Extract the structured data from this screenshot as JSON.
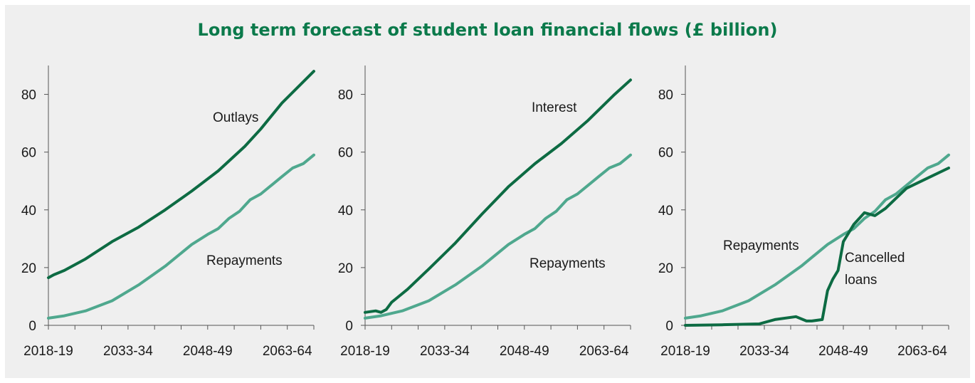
{
  "title": "Long term forecast of student loan financial flows (£ billion)",
  "colors": {
    "dark": "#0d6b43",
    "light": "#4fa88e",
    "axis": "#555555",
    "background": "#efefef",
    "title": "#0b7a4b"
  },
  "chart_data": [
    {
      "type": "line",
      "x_ticks": [
        "2018-19",
        "2033-34",
        "2048-49",
        "2063-64"
      ],
      "x_range": [
        2018,
        2068
      ],
      "ylim": [
        0,
        90
      ],
      "y_ticks": [
        0,
        20,
        40,
        60,
        80
      ],
      "series": [
        {
          "name": "Outlays",
          "color": "dark",
          "x": [
            2018,
            2019,
            2021,
            2025,
            2030,
            2035,
            2040,
            2045,
            2050,
            2055,
            2058,
            2062,
            2068
          ],
          "y": [
            16.5,
            17.5,
            19,
            23,
            29,
            34,
            40,
            46.5,
            53.5,
            62,
            68,
            77,
            88
          ]
        },
        {
          "name": "Repayments",
          "color": "light",
          "x": [
            2018,
            2021,
            2025,
            2030,
            2035,
            2040,
            2045,
            2048,
            2050,
            2052,
            2054,
            2056,
            2058,
            2060,
            2062,
            2064,
            2066,
            2068
          ],
          "y": [
            2.5,
            3.3,
            5,
            8.5,
            14,
            20.5,
            28,
            31.5,
            33.5,
            37,
            39.5,
            43.5,
            45.5,
            48.5,
            51.5,
            54.5,
            56,
            59
          ]
        }
      ],
      "annotations": [
        "Outlays",
        "Repayments"
      ]
    },
    {
      "type": "line",
      "x_ticks": [
        "2018-19",
        "2033-34",
        "2048-49",
        "2063-64"
      ],
      "x_range": [
        2018,
        2068
      ],
      "ylim": [
        0,
        90
      ],
      "y_ticks": [
        0,
        20,
        40,
        60,
        80
      ],
      "series": [
        {
          "name": "Interest",
          "color": "dark",
          "x": [
            2018,
            2020,
            2021,
            2022,
            2023,
            2024,
            2026,
            2030,
            2035,
            2040,
            2045,
            2050,
            2055,
            2060,
            2065,
            2068
          ],
          "y": [
            4.5,
            5,
            4.5,
            5.5,
            8,
            9.5,
            12.5,
            19.5,
            28.5,
            38.5,
            48,
            56,
            63,
            71,
            80,
            85
          ]
        },
        {
          "name": "Repayments",
          "color": "light",
          "x": [
            2018,
            2021,
            2025,
            2030,
            2035,
            2040,
            2045,
            2048,
            2050,
            2052,
            2054,
            2056,
            2058,
            2060,
            2062,
            2064,
            2066,
            2068
          ],
          "y": [
            2.5,
            3.3,
            5,
            8.5,
            14,
            20.5,
            28,
            31.5,
            33.5,
            37,
            39.5,
            43.5,
            45.5,
            48.5,
            51.5,
            54.5,
            56,
            59
          ]
        }
      ],
      "annotations": [
        "Interest",
        "Repayments"
      ]
    },
    {
      "type": "line",
      "x_ticks": [
        "2018-19",
        "2033-34",
        "2048-49",
        "2063-64"
      ],
      "x_range": [
        2018,
        2068
      ],
      "ylim": [
        0,
        90
      ],
      "y_ticks": [
        0,
        20,
        40,
        60,
        80
      ],
      "series": [
        {
          "name": "Repayments",
          "color": "light",
          "x": [
            2018,
            2021,
            2025,
            2030,
            2035,
            2040,
            2045,
            2048,
            2050,
            2052,
            2054,
            2056,
            2058,
            2060,
            2062,
            2064,
            2066,
            2068
          ],
          "y": [
            2.5,
            3.3,
            5,
            8.5,
            14,
            20.5,
            28,
            31.5,
            33.5,
            37,
            39.5,
            43.5,
            45.5,
            48.5,
            51.5,
            54.5,
            56,
            59
          ]
        },
        {
          "name": "Cancelled loans",
          "color": "dark",
          "x": [
            2018,
            2025,
            2032,
            2035,
            2039,
            2041,
            2042,
            2044,
            2045,
            2046,
            2047,
            2048,
            2050,
            2052,
            2054,
            2056,
            2058,
            2060,
            2064,
            2068
          ],
          "y": [
            0,
            0.2,
            0.5,
            2,
            3,
            1.5,
            1.5,
            2,
            12,
            16,
            19,
            29,
            35,
            39,
            38,
            40.5,
            44,
            47.5,
            51,
            54.5
          ]
        }
      ],
      "annotations": [
        "Repayments",
        "Cancelled",
        "loans"
      ]
    }
  ]
}
